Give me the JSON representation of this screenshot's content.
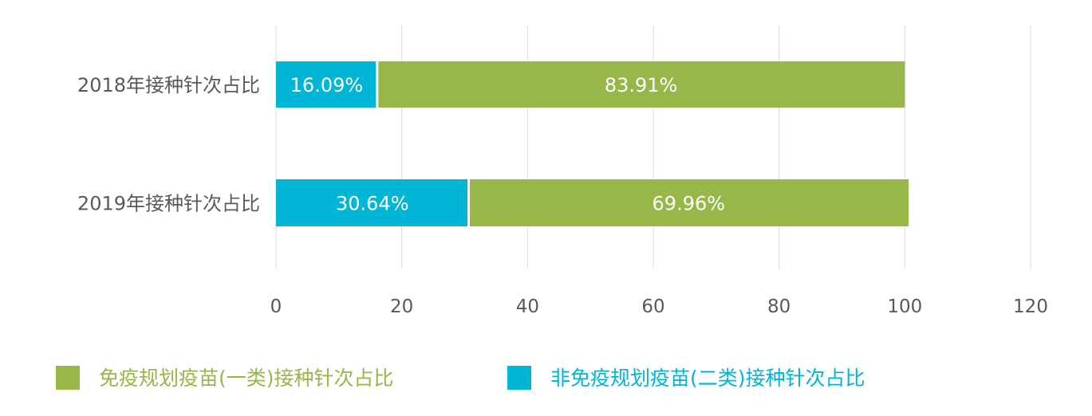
{
  "chart_data": {
    "type": "bar",
    "orientation": "horizontal",
    "stacked": true,
    "categories": [
      "2018年接种针次占比",
      "2019年接种针次占比"
    ],
    "series": [
      {
        "name": "非免疫规划疫苗(二类)接种针次占比",
        "values": [
          16.09,
          30.64
        ],
        "labels": [
          "16.09%",
          "30.64%"
        ],
        "color": "#00B5D6"
      },
      {
        "name": "免疫规划疫苗(一类)接种针次占比",
        "values": [
          83.91,
          69.96
        ],
        "labels": [
          "83.91%",
          "69.96%"
        ],
        "color": "#97B748"
      }
    ],
    "xlim": [
      0,
      120
    ],
    "xticks": [
      "0",
      "20",
      "40",
      "60",
      "80",
      "100",
      "120"
    ],
    "grid": true,
    "legend": {
      "placement": "bottom",
      "entries": [
        {
          "label": "免疫规划疫苗(一类)接种针次占比",
          "color": "#97B748"
        },
        {
          "label": "非免疫规划疫苗(二类)接种针次占比",
          "color": "#00B5D6"
        }
      ]
    }
  }
}
